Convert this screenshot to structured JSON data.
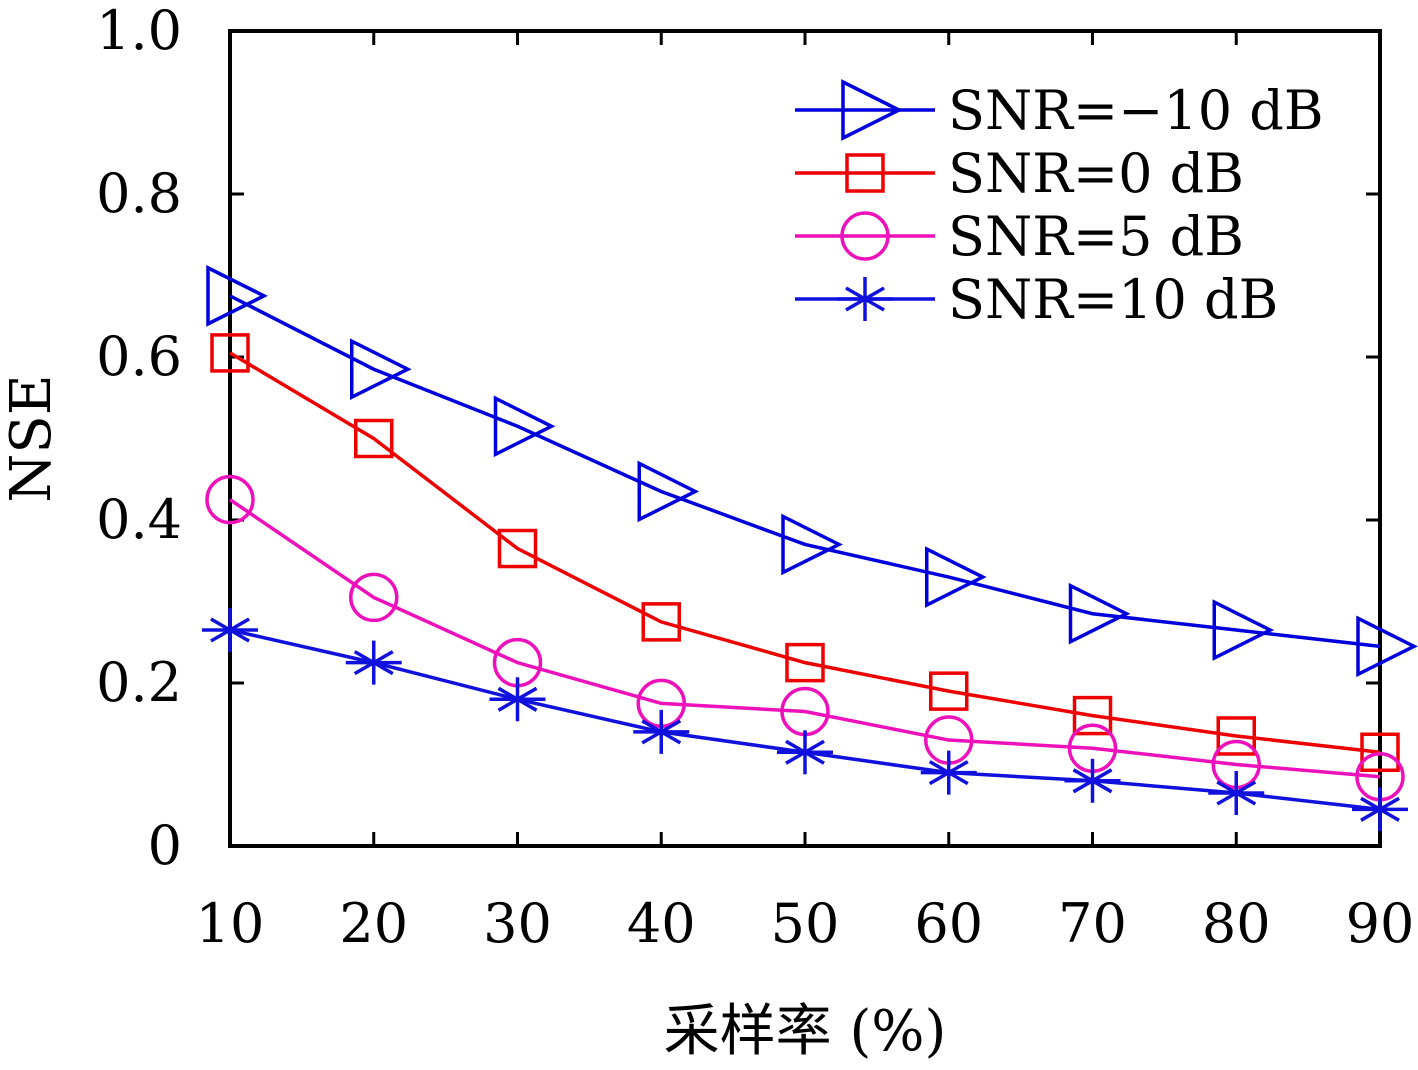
{
  "chart_data": {
    "type": "line",
    "title": "",
    "xlabel": "采样率 (%)",
    "ylabel": "NSE",
    "x": [
      10,
      20,
      30,
      40,
      50,
      60,
      70,
      80,
      90
    ],
    "xlim": [
      10,
      90
    ],
    "ylim": [
      0,
      1.0
    ],
    "x_ticks": [
      "10",
      "20",
      "30",
      "40",
      "50",
      "60",
      "70",
      "80",
      "90"
    ],
    "y_ticks": [
      {
        "value": 0,
        "label": "0"
      },
      {
        "value": 0.2,
        "label": "0.2"
      },
      {
        "value": 0.4,
        "label": "0.4"
      },
      {
        "value": 0.6,
        "label": "0.6"
      },
      {
        "value": 0.8,
        "label": "0.8"
      },
      {
        "value": 1.0,
        "label": "1.0"
      }
    ],
    "grid": false,
    "legend_position": "top-right",
    "series": [
      {
        "name": "SNR=−10 dB",
        "color": "#0000dd",
        "marker": "triangle-right",
        "values": [
          0.675,
          0.585,
          0.515,
          0.435,
          0.37,
          0.33,
          0.285,
          0.265,
          0.245
        ]
      },
      {
        "name": "SNR=0 dB",
        "color": "#ee0000",
        "marker": "square",
        "values": [
          0.605,
          0.5,
          0.365,
          0.275,
          0.225,
          0.19,
          0.16,
          0.135,
          0.115
        ]
      },
      {
        "name": "SNR=5 dB",
        "color": "#ee11bb",
        "marker": "circle",
        "values": [
          0.425,
          0.305,
          0.225,
          0.175,
          0.165,
          0.13,
          0.12,
          0.1,
          0.085
        ]
      },
      {
        "name": "SNR=10 dB",
        "color": "#1111dd",
        "marker": "asterisk",
        "values": [
          0.265,
          0.225,
          0.18,
          0.14,
          0.115,
          0.09,
          0.08,
          0.065,
          0.045
        ]
      }
    ]
  }
}
